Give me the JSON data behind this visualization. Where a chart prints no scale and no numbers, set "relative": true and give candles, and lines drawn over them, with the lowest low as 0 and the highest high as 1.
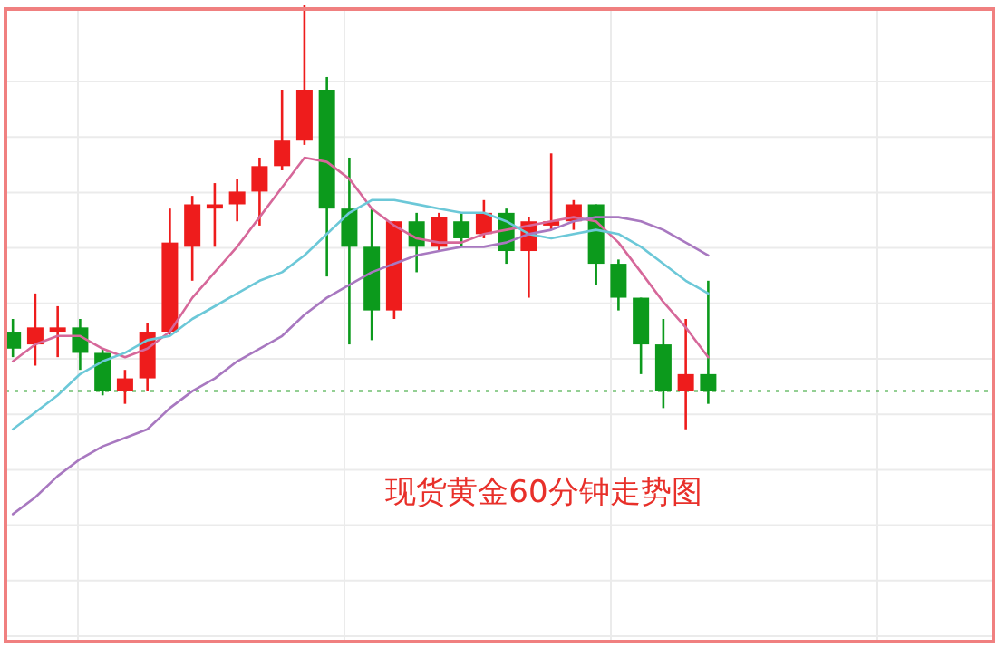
{
  "chart_data": {
    "type": "candlestick",
    "title": "现货黄金60分钟走势图",
    "relative": true,
    "grid": true,
    "categories": [
      null,
      null,
      null,
      null,
      null,
      null,
      null,
      null,
      null,
      null,
      null,
      null,
      null,
      null,
      null,
      null,
      null,
      null,
      null,
      null,
      null,
      null,
      null,
      null,
      null,
      null,
      null,
      null,
      null,
      null,
      null,
      null
    ],
    "ohlc": [
      [
        0.23,
        0.26,
        0.17,
        0.19
      ],
      [
        0.2,
        0.32,
        0.15,
        0.24
      ],
      [
        0.23,
        0.29,
        0.17,
        0.24
      ],
      [
        0.24,
        0.26,
        0.14,
        0.18
      ],
      [
        0.18,
        0.19,
        0.08,
        0.09
      ],
      [
        0.09,
        0.14,
        0.06,
        0.12
      ],
      [
        0.12,
        0.25,
        0.09,
        0.23
      ],
      [
        0.23,
        0.52,
        0.22,
        0.44
      ],
      [
        0.43,
        0.55,
        0.35,
        0.53
      ],
      [
        0.52,
        0.58,
        0.43,
        0.53
      ],
      [
        0.53,
        0.59,
        0.49,
        0.56
      ],
      [
        0.56,
        0.64,
        0.48,
        0.62
      ],
      [
        0.62,
        0.8,
        0.61,
        0.68
      ],
      [
        0.68,
        1,
        0.67,
        0.8
      ],
      [
        0.8,
        0.83,
        0.36,
        0.52
      ],
      [
        0.52,
        0.64,
        0.2,
        0.43
      ],
      [
        0.43,
        0.52,
        0.21,
        0.28
      ],
      [
        0.28,
        0.49,
        0.26,
        0.49
      ],
      [
        0.49,
        0.51,
        0.37,
        0.43
      ],
      [
        0.43,
        0.51,
        0.42,
        0.5
      ],
      [
        0.49,
        0.51,
        0.43,
        0.45
      ],
      [
        0.46,
        0.54,
        0.45,
        0.51
      ],
      [
        0.51,
        0.52,
        0.39,
        0.42
      ],
      [
        0.42,
        0.5,
        0.31,
        0.49
      ],
      [
        0.48,
        0.65,
        0.47,
        0.49
      ],
      [
        0.49,
        0.54,
        0.47,
        0.53
      ],
      [
        0.53,
        0.53,
        0.34,
        0.39
      ],
      [
        0.39,
        0.4,
        0.28,
        0.31
      ],
      [
        0.31,
        0.31,
        0.13,
        0.2
      ],
      [
        0.2,
        0.26,
        0.05,
        0.09
      ],
      [
        0.09,
        0.26,
        0,
        0.13
      ],
      [
        0.13,
        0.35,
        0.06,
        0.09
      ]
    ],
    "colors": [
      "#0c9a1c",
      "#ee1c1c",
      "#ee1c1c",
      "#0c9a1c",
      "#0c9a1c",
      "#ee1c1c",
      "#ee1c1c",
      "#ee1c1c",
      "#ee1c1c",
      "#ee1c1c",
      "#ee1c1c",
      "#ee1c1c",
      "#ee1c1c",
      "#ee1c1c",
      "#0c9a1c",
      "#0c9a1c",
      "#0c9a1c",
      "#ee1c1c",
      "#0c9a1c",
      "#ee1c1c",
      "#0c9a1c",
      "#ee1c1c",
      "#0c9a1c",
      "#ee1c1c",
      "#ee1c1c",
      "#ee1c1c",
      "#0c9a1c",
      "#0c9a1c",
      "#0c9a1c",
      "#0c9a1c",
      "#ee1c1c",
      "#0c9a1c"
    ],
    "series": [
      {
        "type": "line",
        "color": "#d6689a",
        "values": [
          0.16,
          0.2,
          0.22,
          0.22,
          0.19,
          0.17,
          0.19,
          0.23,
          0.31,
          0.37,
          0.43,
          0.5,
          0.57,
          0.64,
          0.63,
          0.59,
          0.52,
          0.48,
          0.45,
          0.44,
          0.44,
          0.46,
          0.47,
          0.48,
          0.49,
          0.5,
          0.49,
          0.44,
          0.37,
          0.3,
          0.24,
          0.17
        ]
      },
      {
        "type": "line",
        "color": "#6cc8d8",
        "values": [
          0,
          0.04,
          0.08,
          0.13,
          0.16,
          0.18,
          0.21,
          0.22,
          0.26,
          0.29,
          0.32,
          0.35,
          0.37,
          0.41,
          0.46,
          0.51,
          0.54,
          0.54,
          0.53,
          0.52,
          0.51,
          0.51,
          0.49,
          0.46,
          0.45,
          0.46,
          0.47,
          0.46,
          0.43,
          0.39,
          0.35,
          0.32
        ]
      },
      {
        "type": "line",
        "color": "#a878c0",
        "values": [
          -0.2,
          -0.16,
          -0.11,
          -0.07,
          -0.04,
          -0.02,
          0,
          0.05,
          0.09,
          0.12,
          0.16,
          0.19,
          0.22,
          0.27,
          0.31,
          0.34,
          0.37,
          0.39,
          0.41,
          0.42,
          0.43,
          0.43,
          0.44,
          0.46,
          0.47,
          0.49,
          0.5,
          0.5,
          0.49,
          0.47,
          0.44,
          0.41
        ]
      }
    ],
    "ref_lines": [
      {
        "axis": "y",
        "value": 0.09,
        "color": "#2aa02a",
        "line_style": "dotted"
      }
    ]
  }
}
